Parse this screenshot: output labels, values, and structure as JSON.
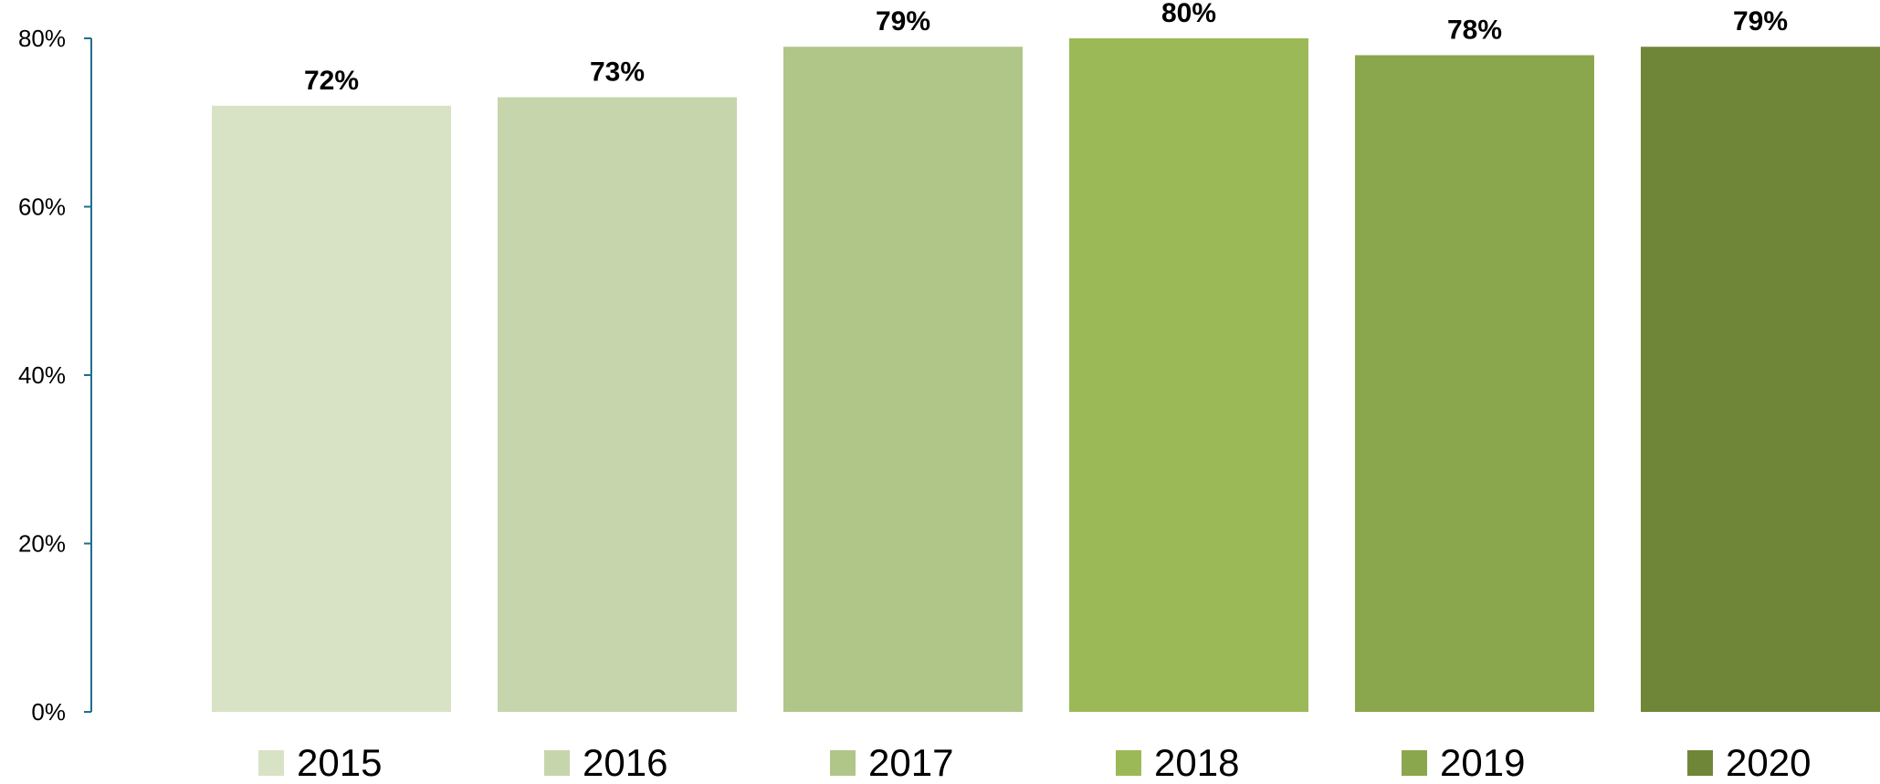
{
  "chart_data": {
    "type": "bar",
    "categories": [
      "2015",
      "2016",
      "2017",
      "2018",
      "2019",
      "2020"
    ],
    "values": [
      72,
      73,
      79,
      80,
      78,
      79
    ],
    "data_labels": [
      "72%",
      "73%",
      "79%",
      "80%",
      "78%",
      "79%"
    ],
    "colors": [
      "#d8e3c6",
      "#c6d5ab",
      "#b0c689",
      "#9cb957",
      "#8ba74d",
      "#6f8639"
    ],
    "ylim": [
      0,
      80
    ],
    "y_ticks": [
      0,
      20,
      40,
      60,
      80
    ],
    "y_tick_labels": [
      "0%",
      "20%",
      "40%",
      "60%",
      "80%"
    ],
    "axis_color": "#1f6e8c",
    "grid": false,
    "legend_position": "bottom",
    "title": "",
    "xlabel": "",
    "ylabel": ""
  }
}
